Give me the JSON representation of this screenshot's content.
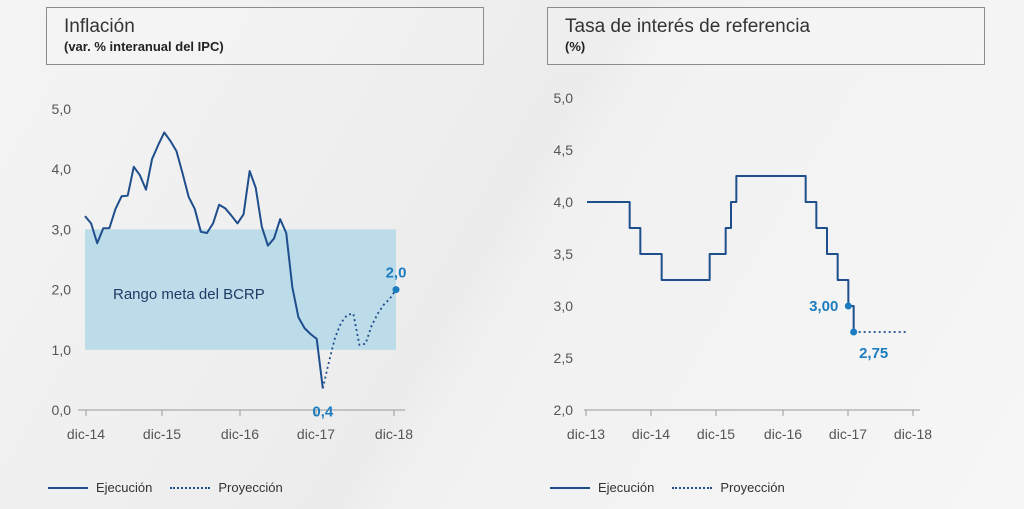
{
  "chart_data": [
    {
      "type": "line",
      "title": "Inflación",
      "subtitle": "(var. % interanual del IPC)",
      "ylim": [
        0,
        5
      ],
      "yticks": [
        "0,0",
        "1,0",
        "2,0",
        "3,0",
        "4,0",
        "5,0"
      ],
      "xticks": [
        "dic-14",
        "dic-15",
        "dic-16",
        "dic-17",
        "dic-18"
      ],
      "band": {
        "label": "Rango meta del BCRP",
        "from": 1,
        "to": 3
      },
      "series": [
        {
          "name": "Ejecución",
          "style": "solid",
          "x": [
            0,
            1,
            2,
            3,
            4,
            5,
            6,
            7,
            8,
            9,
            10,
            11,
            12,
            13,
            14,
            15,
            16,
            17,
            18,
            19,
            20,
            21,
            22,
            23,
            24,
            25,
            26,
            27,
            28,
            29,
            30,
            31,
            32,
            33,
            34,
            35,
            36,
            37,
            38,
            39
          ],
          "y": [
            3.22,
            3.1,
            2.77,
            3.02,
            3.02,
            3.34,
            3.55,
            3.56,
            4.04,
            3.9,
            3.66,
            4.17,
            4.4,
            4.61,
            4.47,
            4.3,
            3.93,
            3.54,
            3.34,
            2.96,
            2.94,
            3.1,
            3.41,
            3.35,
            3.23,
            3.1,
            3.25,
            3.97,
            3.69,
            3.04,
            2.73,
            2.85,
            3.17,
            2.94,
            2.04,
            1.54,
            1.36,
            1.26,
            1.18,
            0.36
          ]
        },
        {
          "name": "Proyección",
          "style": "dotted",
          "x": [
            39,
            40,
            41,
            42,
            43,
            44,
            45,
            46,
            47,
            48,
            49,
            50,
            51
          ],
          "y": [
            0.36,
            0.8,
            1.2,
            1.45,
            1.58,
            1.6,
            1.08,
            1.1,
            1.4,
            1.6,
            1.75,
            1.85,
            2.0
          ]
        }
      ],
      "annotations": [
        {
          "text": "0,4",
          "x": 39,
          "y": 0.36
        },
        {
          "text": "2,0",
          "x": 51,
          "y": 2.0
        }
      ],
      "legend": [
        "Ejecución",
        "Proyección"
      ]
    },
    {
      "type": "line",
      "title": "Tasa de interés de referencia",
      "subtitle": "(%)",
      "ylim": [
        2,
        5
      ],
      "yticks": [
        "2,0",
        "2,5",
        "3,0",
        "3,5",
        "4,0",
        "4,5",
        "5,0"
      ],
      "xticks": [
        "dic-13",
        "dic-14",
        "dic-15",
        "dic-16",
        "dic-17",
        "dic-18"
      ],
      "series": [
        {
          "name": "Ejecución",
          "style": "solid",
          "x": [
            0,
            3,
            4,
            5,
            6,
            7,
            8,
            9,
            10,
            11,
            12,
            13,
            14,
            15,
            16,
            17,
            18,
            19,
            20,
            21,
            22,
            23,
            24,
            25,
            26,
            27,
            28,
            29,
            30,
            31,
            32,
            33,
            34,
            35,
            36,
            37,
            38,
            39,
            40,
            41,
            42,
            43,
            44,
            45,
            46,
            47,
            48,
            49,
            50
          ],
          "y": [
            4.0,
            4.0,
            4.0,
            4.0,
            4.0,
            4.0,
            3.75,
            3.75,
            3.5,
            3.5,
            3.5,
            3.5,
            3.25,
            3.25,
            3.25,
            3.25,
            3.25,
            3.25,
            3.25,
            3.25,
            3.25,
            3.5,
            3.5,
            3.5,
            3.75,
            4.0,
            4.25,
            4.25,
            4.25,
            4.25,
            4.25,
            4.25,
            4.25,
            4.25,
            4.25,
            4.25,
            4.25,
            4.25,
            4.25,
            4.0,
            4.0,
            3.75,
            3.75,
            3.5,
            3.5,
            3.25,
            3.25,
            3.0,
            2.75
          ]
        },
        {
          "name": "Proyección",
          "style": "dotted",
          "x": [
            50,
            51,
            52,
            53,
            54,
            55,
            56,
            57,
            58,
            59,
            60
          ],
          "y": [
            2.75,
            2.75,
            2.75,
            2.75,
            2.75,
            2.75,
            2.75,
            2.75,
            2.75,
            2.75,
            2.75
          ]
        }
      ],
      "annotations": [
        {
          "text": "3,00",
          "x": 49,
          "y": 3.0
        },
        {
          "text": "2,75",
          "x": 50,
          "y": 2.75
        }
      ],
      "legend": [
        "Ejecución",
        "Proyección"
      ]
    }
  ],
  "colors": {
    "line": "#1f4e8c",
    "band": "#bcdcea",
    "label": "#1c7cc0",
    "axis": "#9a9a9a",
    "tick_text": "#555555"
  }
}
